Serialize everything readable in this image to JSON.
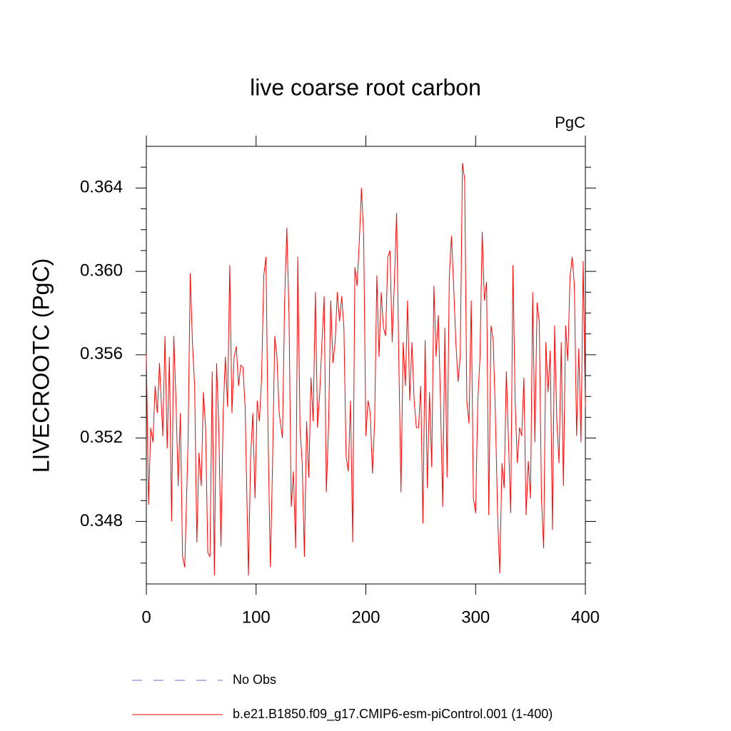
{
  "chart_data": {
    "type": "line",
    "title": "live coarse root carbon",
    "units": "PgC",
    "y_label": "LIVECROOTC  (PgC)",
    "xlim": [
      0,
      400
    ],
    "xticks": [
      0,
      100,
      200,
      300,
      400
    ],
    "ylim": [
      0.345,
      0.366
    ],
    "yticks": [
      0.348,
      0.352,
      0.356,
      {
        "value": 0.36,
        "label": "0.360"
      },
      0.364
    ],
    "yminorticks": [
      0.346,
      0.347,
      0.349,
      0.35,
      0.351,
      0.353,
      0.354,
      0.355,
      0.357,
      0.358,
      0.359,
      0.361,
      0.362,
      0.363,
      0.365
    ],
    "reference": {
      "name": "No Obs",
      "color": "#7b68c8",
      "dashed": true
    },
    "series": [
      {
        "name": "b.e21.B1850.f09_g17.CMIP6-esm-piControl.001 (1-400)",
        "color": "#ff0000",
        "x": [
          0,
          2,
          4,
          6,
          8,
          10,
          12,
          15,
          17,
          19,
          21,
          23,
          25,
          27,
          29,
          31,
          33,
          35,
          38,
          40,
          42,
          44,
          46,
          48,
          50,
          52,
          54,
          56,
          58,
          60,
          62,
          64,
          66,
          68,
          70,
          72,
          74,
          76,
          78,
          80,
          82,
          84,
          86,
          88,
          90,
          93,
          95,
          97,
          99,
          101,
          103,
          105,
          107,
          109,
          111,
          113,
          115,
          117,
          119,
          121,
          124,
          126,
          128,
          130,
          132,
          134,
          136,
          138,
          140,
          142,
          144,
          146,
          148,
          150,
          152,
          154,
          156,
          158,
          160,
          162,
          164,
          166,
          168,
          170,
          172,
          174,
          176,
          178,
          180,
          182,
          184,
          186,
          188,
          190,
          192,
          194,
          196,
          198,
          200,
          202,
          204,
          206,
          208,
          210,
          212,
          214,
          216,
          218,
          220,
          222,
          224,
          226,
          228,
          230,
          232,
          234,
          236,
          238,
          240,
          242,
          244,
          246,
          248,
          250,
          252,
          254,
          256,
          258,
          260,
          262,
          264,
          266,
          268,
          270,
          272,
          274,
          276,
          278,
          280,
          282,
          284,
          286,
          288,
          290,
          292,
          294,
          296,
          298,
          300,
          302,
          304,
          306,
          308,
          310,
          312,
          314,
          316,
          318,
          320,
          322,
          324,
          326,
          328,
          330,
          332,
          334,
          336,
          338,
          340,
          342,
          344,
          346,
          348,
          350,
          352,
          354,
          356,
          358,
          360,
          362,
          364,
          366,
          368,
          370,
          372,
          374,
          376,
          378,
          380,
          382,
          384,
          386,
          388,
          390,
          392,
          394,
          396,
          398,
          400
        ],
        "values": [
          0.356,
          0.3488,
          0.3525,
          0.3518,
          0.3545,
          0.3532,
          0.3556,
          0.3521,
          0.3569,
          0.3515,
          0.3559,
          0.348,
          0.3569,
          0.3538,
          0.3497,
          0.3532,
          0.3463,
          0.3458,
          0.3518,
          0.3599,
          0.3566,
          0.3545,
          0.347,
          0.3513,
          0.3497,
          0.3542,
          0.3525,
          0.3465,
          0.3463,
          0.3552,
          0.3454,
          0.3556,
          0.3525,
          0.3468,
          0.3532,
          0.3559,
          0.3535,
          0.3603,
          0.3532,
          0.3559,
          0.3564,
          0.3545,
          0.3555,
          0.3554,
          0.3535,
          0.3454,
          0.3511,
          0.3532,
          0.3491,
          0.3538,
          0.3528,
          0.3549,
          0.3598,
          0.3607,
          0.3518,
          0.3458,
          0.3508,
          0.3569,
          0.3559,
          0.3532,
          0.352,
          0.3586,
          0.3621,
          0.3579,
          0.3487,
          0.3504,
          0.3467,
          0.3607,
          0.3525,
          0.3508,
          0.3463,
          0.3528,
          0.3501,
          0.3549,
          0.3528,
          0.359,
          0.3525,
          0.3542,
          0.3566,
          0.3588,
          0.3494,
          0.3525,
          0.3586,
          0.3556,
          0.3566,
          0.359,
          0.3576,
          0.3588,
          0.3573,
          0.3511,
          0.3504,
          0.3538,
          0.347,
          0.3602,
          0.3593,
          0.3614,
          0.364,
          0.3617,
          0.3521,
          0.3538,
          0.3532,
          0.3503,
          0.3528,
          0.3598,
          0.3559,
          0.359,
          0.3573,
          0.3569,
          0.3607,
          0.361,
          0.3566,
          0.3595,
          0.3628,
          0.3559,
          0.3494,
          0.3566,
          0.3545,
          0.3586,
          0.3538,
          0.3566,
          0.3538,
          0.3525,
          0.3525,
          0.3545,
          0.3479,
          0.3567,
          0.3496,
          0.3542,
          0.3506,
          0.3593,
          0.3559,
          0.3579,
          0.3538,
          0.3487,
          0.3573,
          0.3501,
          0.3597,
          0.3617,
          0.3593,
          0.3566,
          0.3547,
          0.3559,
          0.3652,
          0.3644,
          0.3538,
          0.3527,
          0.3586,
          0.3491,
          0.3484,
          0.3538,
          0.3559,
          0.3619,
          0.3586,
          0.3595,
          0.3483,
          0.3574,
          0.3567,
          0.3532,
          0.3484,
          0.3455,
          0.3508,
          0.3496,
          0.3552,
          0.3518,
          0.3484,
          0.3603,
          0.3538,
          0.3508,
          0.3525,
          0.3521,
          0.3549,
          0.3483,
          0.3509,
          0.3491,
          0.359,
          0.3518,
          0.3585,
          0.3576,
          0.3491,
          0.3467,
          0.3566,
          0.3542,
          0.3562,
          0.3476,
          0.3574,
          0.3528,
          0.3508,
          0.3566,
          0.3497,
          0.3574,
          0.3557,
          0.3597,
          0.3607,
          0.3593,
          0.3521,
          0.3563,
          0.3518,
          0.3605,
          0.3535
        ]
      }
    ]
  }
}
